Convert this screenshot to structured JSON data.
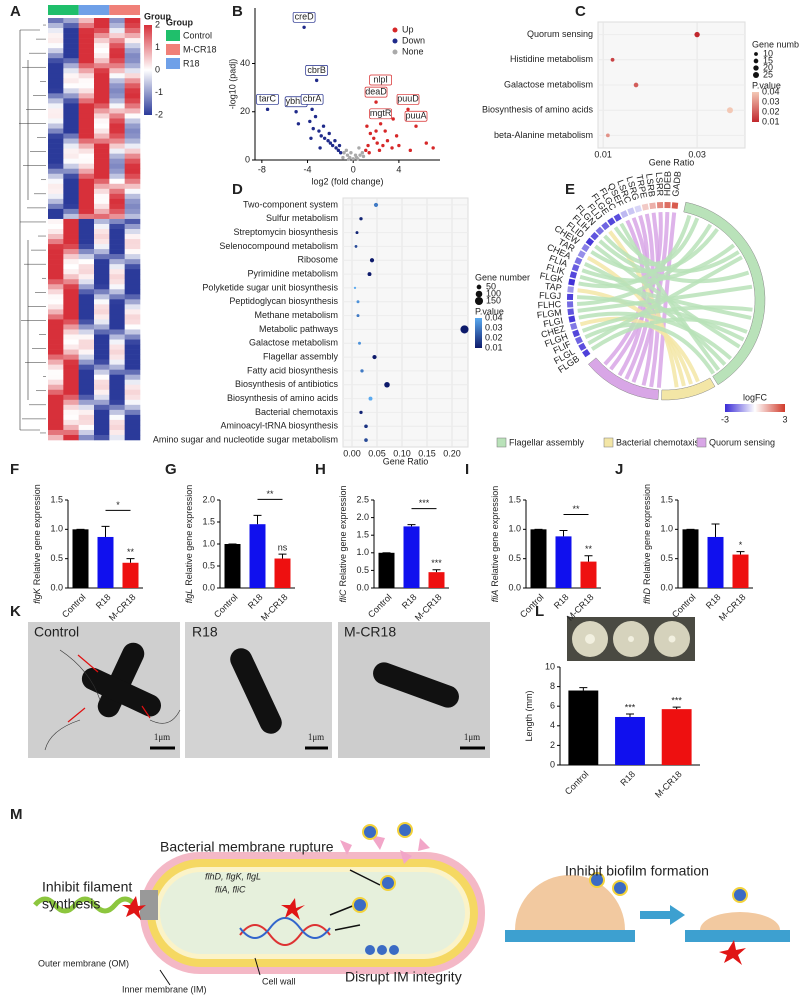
{
  "panel_letters": [
    "A",
    "B",
    "C",
    "D",
    "E",
    "F",
    "G",
    "H",
    "I",
    "J",
    "K",
    "L",
    "M"
  ],
  "heatmap": {
    "legend_title": "Group",
    "groups": [
      {
        "name": "Control",
        "color": "#1fbf6b"
      },
      {
        "name": "M-CR18",
        "color": "#f08078"
      },
      {
        "name": "R18",
        "color": "#6fa0e8"
      }
    ],
    "scale_ticks": [
      2,
      1,
      0,
      -1,
      -2
    ]
  },
  "chord": {
    "genes": [
      "GADB",
      "HDEB",
      "LSRR",
      "LSRB",
      "TRPE",
      "LSRG",
      "LSRC",
      "QSEF",
      "FLGC",
      "FLGE",
      "FLIJ",
      "FLGN",
      "FLIH",
      "FLID",
      "CHEW",
      "TAR",
      "CHEA",
      "FLIA",
      "FLIK",
      "FLGK",
      "TAP",
      "FLGJ",
      "FLHC",
      "FLGM",
      "FLGI",
      "CHEZ",
      "FLGH",
      "FLIF",
      "FLGL",
      "FLGB"
    ],
    "logFC": [
      2.5,
      2.2,
      1.8,
      1.2,
      0.8,
      -0.6,
      -0.8,
      -1.0,
      -2.5,
      -2.6,
      -2.2,
      -2.0,
      -2.4,
      -2.8,
      -1.8,
      -1.6,
      -2.0,
      -2.3,
      -2.6,
      -2.9,
      -1.5,
      -2.7,
      -2.1,
      -2.4,
      -2.8,
      -1.9,
      -2.6,
      -2.2,
      -2.5,
      -2.7
    ],
    "scale_title": "logFC",
    "scale_ticks": [
      -3,
      3
    ],
    "scale_colors": [
      "#3a2bd6",
      "#ffffff",
      "#d03a2a"
    ],
    "sets": [
      {
        "name": "Flagellar assembly",
        "color": "#b9e2b9"
      },
      {
        "name": "Bacterial chemotaxis",
        "color": "#f3e6a6"
      },
      {
        "name": "Quorum sensing",
        "color": "#d8a6e6"
      }
    ]
  },
  "micrographs": {
    "labels": [
      "Control",
      "R18",
      "M-CR18"
    ],
    "scale_bar": "1μm"
  },
  "schematic": {
    "rupture": "Bacterial membrane rupture",
    "filament": [
      "Inhibit filament",
      "synthesis"
    ],
    "genes": [
      "flhD, flgK, flgL",
      "fliA, fliC"
    ],
    "om": "Outer membrane (OM)",
    "im": "Inner membrane (IM)",
    "wall": "Cell wall",
    "disrupt": "Disrupt IM integrity",
    "biofilm": "Inhibit biofilm formation"
  },
  "chart_data": [
    {
      "type": "scatter",
      "x_label": "log2 (fold change)",
      "y_label": "-log10 (padj)",
      "xlim": [
        -8.6,
        7.6
      ],
      "ylim": [
        0,
        63
      ],
      "xticks": [
        -8,
        -4,
        0,
        4
      ],
      "yticks": [
        0,
        20,
        40
      ],
      "legend": "upper right",
      "series": [
        {
          "name": "Up",
          "color": "#d62728",
          "x": [
            2.4,
            2.0,
            4.8,
            2.4,
            5.5,
            1.5,
            3.5,
            6.4,
            7.0,
            1.2,
            1.5,
            1.8,
            2.1,
            2.6,
            3.0,
            3.4,
            1.1,
            1.4,
            2.0,
            2.8,
            1.3,
            4.0,
            5.0,
            3.8,
            2.3
          ],
          "y": [
            29,
            24,
            21,
            15,
            14,
            27,
            17,
            7,
            5,
            14,
            11,
            9,
            7,
            6,
            8,
            5,
            4,
            3,
            12,
            12,
            6,
            6,
            4,
            10,
            4
          ],
          "labels": [
            "nlpI",
            "deaD",
            "puuD",
            "mgtR",
            "puuA",
            null,
            null,
            null,
            null,
            null,
            null,
            null,
            null,
            null,
            null,
            null,
            null,
            null,
            null,
            null,
            null,
            null,
            null,
            null,
            null
          ]
        },
        {
          "name": "Down",
          "color": "#1f2a8a",
          "x": [
            -4.3,
            -3.2,
            -7.5,
            -5.0,
            -3.6,
            -4.0,
            -3.8,
            -3.5,
            -3.0,
            -2.8,
            -2.5,
            -2.2,
            -2.0,
            -1.8,
            -1.5,
            -1.3,
            -1.1,
            -2.6,
            -3.3,
            -4.8,
            -2.1,
            -1.6,
            -1.2,
            -3.7,
            -2.9
          ],
          "y": [
            55,
            33,
            21,
            20,
            21,
            26,
            16,
            13,
            12,
            10,
            9,
            8,
            7,
            6,
            5,
            4,
            3,
            14,
            18,
            15,
            11,
            8,
            6,
            9,
            5
          ],
          "labels": [
            "creD",
            "cbrB",
            "tarC",
            "ybhH",
            "cbrA",
            null,
            null,
            null,
            null,
            null,
            null,
            null,
            null,
            null,
            null,
            null,
            null,
            null,
            null,
            null,
            null,
            null,
            null,
            null,
            null
          ]
        },
        {
          "name": "None",
          "color": "#aaaaaa",
          "x": [
            -0.8,
            -0.5,
            -0.3,
            0,
            0.3,
            0.6,
            0.8,
            -0.6,
            0.5,
            0.2,
            -0.2,
            0.9,
            -0.9,
            0.4,
            -0.4
          ],
          "y": [
            3,
            2,
            1,
            0.5,
            1,
            2,
            3,
            4,
            5,
            2,
            3,
            1.5,
            1,
            0.5,
            0.3
          ]
        }
      ]
    },
    {
      "type": "dot",
      "x_label": "Gene Ratio",
      "categories": [
        "Quorum sensing",
        "Histidine metabolism",
        "Galactose metabolism",
        "Biosynthesis of amino acids",
        "beta-Alanine metabolism"
      ],
      "x": [
        0.03,
        0.012,
        0.017,
        0.037,
        0.011
      ],
      "sizes": [
        20,
        10,
        15,
        25,
        10
      ],
      "pvalue": [
        0.01,
        0.015,
        0.02,
        0.04,
        0.03
      ],
      "xlim": [
        0.0089,
        0.0402
      ],
      "xticks": [
        0.01,
        0.03
      ],
      "size_title": "Gene number",
      "size_ticks": [
        10,
        15,
        20,
        25
      ],
      "color_title": "P.value",
      "color_ticks": [
        0.04,
        0.03,
        0.02,
        0.01
      ],
      "colors": [
        "#f3c8b5",
        "#c1272d"
      ]
    },
    {
      "type": "dot",
      "x_label": "Gene Ratio",
      "categories": [
        "Two-component system",
        "Sulfur metabolism",
        "Streptomycin biosynthesis",
        "Selenocompound metabolism",
        "Ribosome",
        "Pyrimidine metabolism",
        "Polyketide sugar unit biosynthesis",
        "Peptidoglycan biosynthesis",
        "Methane metabolism",
        "Metabolic pathways",
        "Galactose metabolism",
        "Flagellar assembly",
        "Fatty acid biosynthesis",
        "Biosynthesis of antibiotics",
        "Biosynthesis of amino acids",
        "Bacterial chemotaxis",
        "Aminoacyl-tRNA biosynthesis",
        "Amino sugar and nucleotide sugar metabolism"
      ],
      "x": [
        0.048,
        0.018,
        0.01,
        0.008,
        0.04,
        0.035,
        0.006,
        0.012,
        0.012,
        0.225,
        0.015,
        0.045,
        0.02,
        0.07,
        0.037,
        0.018,
        0.028,
        0.028
      ],
      "sizes": [
        40,
        25,
        20,
        18,
        40,
        35,
        12,
        20,
        20,
        150,
        20,
        40,
        25,
        70,
        35,
        25,
        30,
        30
      ],
      "pvalue": [
        0.03,
        0.012,
        0.012,
        0.02,
        0.01,
        0.01,
        0.04,
        0.035,
        0.03,
        0.01,
        0.035,
        0.01,
        0.03,
        0.01,
        0.04,
        0.012,
        0.015,
        0.02
      ],
      "xlim": [
        -0.018,
        0.232
      ],
      "xticks": [
        {
          "value": 0,
          "label": "0.00"
        },
        {
          "value": 0.05,
          "label": "0.05"
        },
        {
          "value": 0.1,
          "label": "0.10"
        },
        {
          "value": 0.15,
          "label": "0.15"
        },
        {
          "value": 0.2,
          "label": "0.20"
        }
      ],
      "size_title": "Gene number",
      "size_ticks": [
        50,
        100,
        150
      ],
      "color_title": "P.value",
      "color_ticks": [
        0.04,
        0.03,
        0.02,
        0.01
      ],
      "colors": [
        "#5aaaf0",
        "#0d1a6b"
      ]
    },
    {
      "type": "bar",
      "gene": "flgK",
      "y_label": "Relative gene expression",
      "categories": [
        "Control",
        "R18",
        "M-CR18"
      ],
      "values": [
        1.0,
        0.87,
        0.43
      ],
      "errors": [
        0,
        0.18,
        0.07
      ],
      "colors": [
        "#000000",
        "#1010ee",
        "#ee1010"
      ],
      "ylim": [
        0,
        1.5
      ],
      "yticks": [
        {
          "value": 0,
          "label": "0.0"
        },
        {
          "value": 0.5,
          "label": "0.5"
        },
        {
          "value": 1,
          "label": "1.0"
        },
        {
          "value": 1.5,
          "label": "1.5"
        }
      ],
      "bracket_label": "*",
      "bar_labels": [
        null,
        null,
        "**"
      ]
    },
    {
      "type": "bar",
      "gene": "flgL",
      "y_label": "Relative gene expression",
      "categories": [
        "Control",
        "R18",
        "M-CR18"
      ],
      "values": [
        1.0,
        1.45,
        0.67
      ],
      "errors": [
        0,
        0.2,
        0.1
      ],
      "colors": [
        "#000000",
        "#1010ee",
        "#ee1010"
      ],
      "ylim": [
        0,
        2
      ],
      "yticks": [
        {
          "value": 0,
          "label": "0.0"
        },
        {
          "value": 0.5,
          "label": "0.5"
        },
        {
          "value": 1,
          "label": "1.0"
        },
        {
          "value": 1.5,
          "label": "1.5"
        },
        {
          "value": 2,
          "label": "2.0"
        }
      ],
      "bracket_label": "**",
      "bar_labels": [
        null,
        null,
        "ns"
      ]
    },
    {
      "type": "bar",
      "gene": "fliC",
      "y_label": "Relative gene expression",
      "categories": [
        "Control",
        "R18",
        "M-CR18"
      ],
      "values": [
        1.0,
        1.75,
        0.45
      ],
      "errors": [
        0,
        0.05,
        0.07
      ],
      "colors": [
        "#000000",
        "#1010ee",
        "#ee1010"
      ],
      "ylim": [
        0,
        2.5
      ],
      "yticks": [
        {
          "value": 0,
          "label": "0.0"
        },
        {
          "value": 0.5,
          "label": "0.5"
        },
        {
          "value": 1,
          "label": "1.0"
        },
        {
          "value": 1.5,
          "label": "1.5"
        },
        {
          "value": 2,
          "label": "2.0"
        },
        {
          "value": 2.5,
          "label": "2.5"
        }
      ],
      "bracket_label": "***",
      "bar_labels": [
        null,
        null,
        "***"
      ]
    },
    {
      "type": "bar",
      "gene": "fliA",
      "y_label": "Relative gene expression",
      "categories": [
        "Control",
        "R18",
        "M-CR18"
      ],
      "values": [
        1.0,
        0.88,
        0.45
      ],
      "errors": [
        0,
        0.1,
        0.1
      ],
      "colors": [
        "#000000",
        "#1010ee",
        "#ee1010"
      ],
      "ylim": [
        0,
        1.5
      ],
      "yticks": [
        {
          "value": 0,
          "label": "0.0"
        },
        {
          "value": 0.5,
          "label": "0.5"
        },
        {
          "value": 1,
          "label": "1.0"
        },
        {
          "value": 1.5,
          "label": "1.5"
        }
      ],
      "bracket_label": "**",
      "bar_labels": [
        null,
        null,
        "**"
      ]
    },
    {
      "type": "bar",
      "gene": "flhD",
      "y_label": "Relative gene expression",
      "categories": [
        "Control",
        "R18",
        "M-CR18"
      ],
      "values": [
        1.0,
        0.87,
        0.57
      ],
      "errors": [
        0,
        0.22,
        0.05
      ],
      "colors": [
        "#000000",
        "#1010ee",
        "#ee1010"
      ],
      "ylim": [
        0,
        1.5
      ],
      "yticks": [
        {
          "value": 0,
          "label": "0.0"
        },
        {
          "value": 0.5,
          "label": "0.5"
        },
        {
          "value": 1,
          "label": "1.0"
        },
        {
          "value": 1.5,
          "label": "1.5"
        }
      ],
      "bar_labels": [
        null,
        null,
        "*"
      ]
    },
    {
      "type": "bar",
      "y_label": "Length (mm)",
      "categories": [
        "Control",
        "R18",
        "M-CR18"
      ],
      "values": [
        7.6,
        4.9,
        5.7
      ],
      "errors": [
        0.3,
        0.3,
        0.2
      ],
      "colors": [
        "#000000",
        "#1010ee",
        "#ee1010"
      ],
      "ylim": [
        0,
        10
      ],
      "yticks": [
        0,
        2,
        4,
        6,
        8,
        10
      ],
      "bar_labels": [
        null,
        "***",
        "***"
      ]
    }
  ]
}
